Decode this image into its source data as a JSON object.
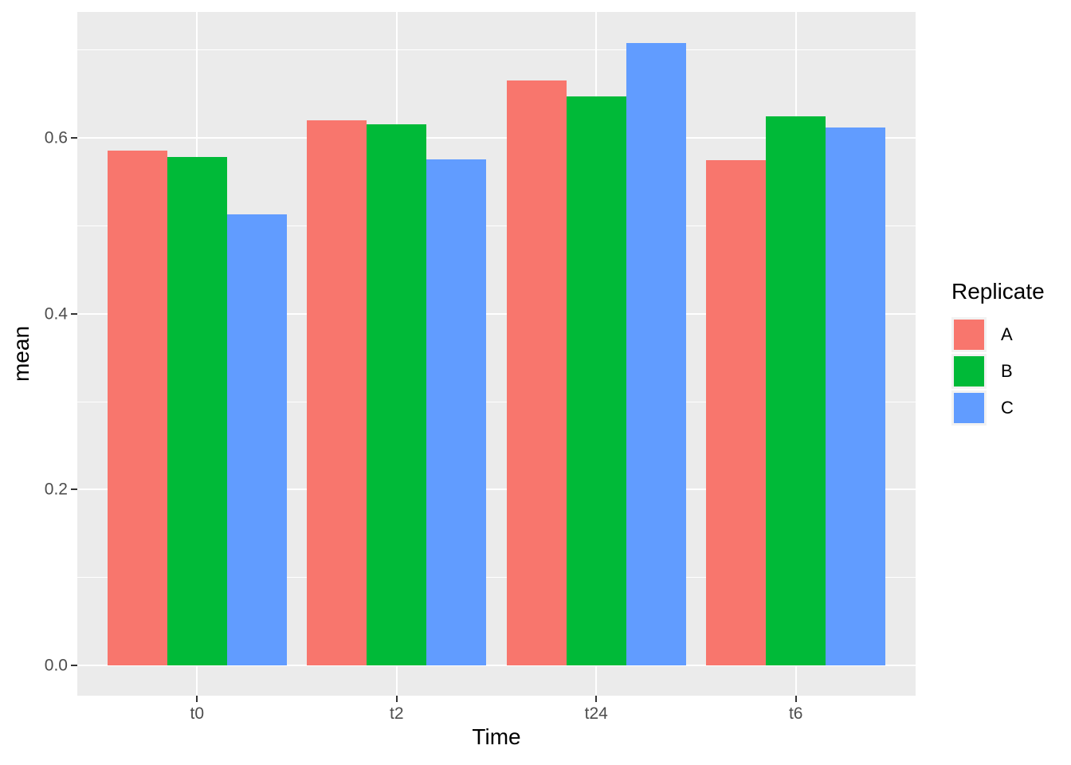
{
  "chart_data": {
    "type": "bar",
    "grouping": "dodged",
    "title": "",
    "xlabel": "Time",
    "ylabel": "mean",
    "categories": [
      "t0",
      "t2",
      "t24",
      "t6"
    ],
    "series": [
      {
        "name": "A",
        "color": "#F8766D",
        "values": [
          0.586,
          0.62,
          0.665,
          0.575
        ]
      },
      {
        "name": "B",
        "color": "#00BA38",
        "values": [
          0.578,
          0.616,
          0.647,
          0.625
        ]
      },
      {
        "name": "C",
        "color": "#619CFF",
        "values": [
          0.513,
          0.576,
          0.708,
          0.612
        ]
      }
    ],
    "legend": {
      "title": "Replicate",
      "position": "right"
    },
    "y_axis": {
      "ticks": [
        {
          "value": 0.0,
          "label": "0.0"
        },
        {
          "value": 0.2,
          "label": "0.2"
        },
        {
          "value": 0.4,
          "label": "0.4"
        },
        {
          "value": 0.6,
          "label": "0.6"
        }
      ],
      "minor_ticks": [
        0.1,
        0.3,
        0.5,
        0.7
      ],
      "range": [
        -0.0344,
        0.7434
      ]
    },
    "x_axis": {
      "tick_labels": [
        "t0",
        "t2",
        "t24",
        "t6"
      ]
    },
    "style": {
      "panel_background": "#EBEBEB",
      "grid_color": "#FFFFFF",
      "axis_tick_color": "#333333",
      "tick_label_color": "#4D4D4D",
      "axis_title_color": "#000000",
      "legend_key_background": "#F2F2F2"
    }
  }
}
